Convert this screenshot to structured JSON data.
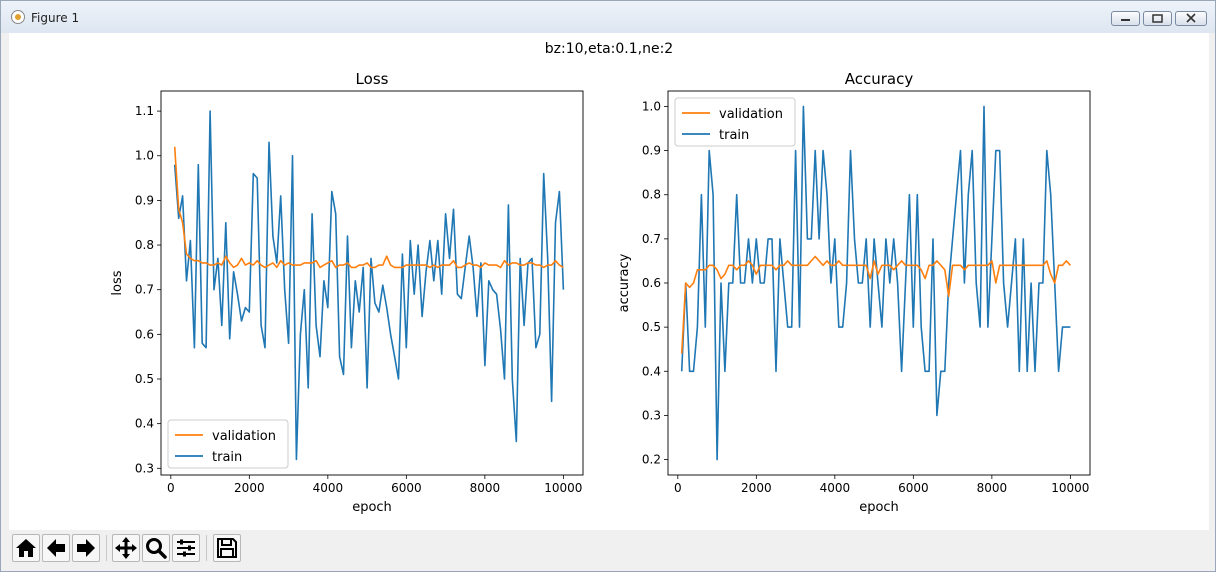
{
  "window": {
    "title": "Figure 1"
  },
  "figure": {
    "suptitle": "bz:10,eta:0.1,ne:2"
  },
  "toolbar": {
    "buttons": [
      "home-icon",
      "back-icon",
      "forward-icon",
      "pan-icon",
      "zoom-icon",
      "configure-icon",
      "save-icon"
    ]
  },
  "colors": {
    "validation": "#ff7f0e",
    "train": "#1f77b4"
  },
  "chart_data": [
    {
      "type": "line",
      "title": "Loss",
      "xlabel": "epoch",
      "ylabel": "loss",
      "xlim": [
        -250,
        10500
      ],
      "ylim": [
        0.285,
        1.145
      ],
      "xticks": [
        0,
        2000,
        4000,
        6000,
        8000,
        10000
      ],
      "yticks": [
        0.3,
        0.4,
        0.5,
        0.6,
        0.7,
        0.8,
        0.9,
        1.0,
        1.1
      ],
      "ytick_decimals": 1,
      "legend": "lower-left",
      "x": [
        100,
        200,
        300,
        400,
        500,
        600,
        700,
        800,
        900,
        1000,
        1100,
        1200,
        1300,
        1400,
        1500,
        1600,
        1700,
        1800,
        1900,
        2000,
        2100,
        2200,
        2300,
        2400,
        2500,
        2600,
        2700,
        2800,
        2900,
        3000,
        3100,
        3200,
        3300,
        3400,
        3500,
        3600,
        3700,
        3800,
        3900,
        4000,
        4100,
        4200,
        4300,
        4400,
        4500,
        4600,
        4700,
        4800,
        4900,
        5000,
        5100,
        5200,
        5300,
        5400,
        5500,
        5600,
        5700,
        5800,
        5900,
        6000,
        6100,
        6200,
        6300,
        6400,
        6500,
        6600,
        6700,
        6800,
        6900,
        7000,
        7100,
        7200,
        7300,
        7400,
        7500,
        7600,
        7700,
        7800,
        7900,
        8000,
        8100,
        8200,
        8300,
        8400,
        8500,
        8600,
        8700,
        8800,
        8900,
        9000,
        9100,
        9200,
        9300,
        9400,
        9500,
        9600,
        9700,
        9800,
        9900,
        10000
      ],
      "series": [
        {
          "name": "validation",
          "values": [
            1.02,
            0.88,
            0.85,
            0.78,
            0.77,
            0.765,
            0.765,
            0.76,
            0.76,
            0.755,
            0.755,
            0.76,
            0.755,
            0.775,
            0.76,
            0.75,
            0.755,
            0.77,
            0.755,
            0.76,
            0.755,
            0.765,
            0.755,
            0.75,
            0.755,
            0.76,
            0.75,
            0.765,
            0.755,
            0.76,
            0.755,
            0.755,
            0.755,
            0.76,
            0.76,
            0.76,
            0.765,
            0.75,
            0.755,
            0.76,
            0.765,
            0.75,
            0.755,
            0.755,
            0.76,
            0.75,
            0.75,
            0.755,
            0.755,
            0.76,
            0.75,
            0.75,
            0.755,
            0.755,
            0.775,
            0.755,
            0.75,
            0.75,
            0.75,
            0.755,
            0.755,
            0.755,
            0.755,
            0.755,
            0.755,
            0.75,
            0.755,
            0.75,
            0.755,
            0.755,
            0.755,
            0.765,
            0.75,
            0.75,
            0.755,
            0.76,
            0.755,
            0.755,
            0.75,
            0.76,
            0.755,
            0.755,
            0.755,
            0.75,
            0.765,
            0.755,
            0.76,
            0.76,
            0.755,
            0.755,
            0.76,
            0.76,
            0.755,
            0.755,
            0.75,
            0.755,
            0.755,
            0.765,
            0.755,
            0.75
          ]
        },
        {
          "name": "train",
          "values": [
            0.98,
            0.86,
            0.91,
            0.72,
            0.81,
            0.57,
            0.98,
            0.58,
            0.57,
            1.1,
            0.7,
            0.77,
            0.62,
            0.85,
            0.59,
            0.74,
            0.69,
            0.63,
            0.66,
            0.65,
            0.96,
            0.95,
            0.62,
            0.57,
            1.03,
            0.82,
            0.76,
            0.91,
            0.7,
            0.58,
            1.0,
            0.32,
            0.6,
            0.7,
            0.48,
            0.87,
            0.62,
            0.55,
            0.72,
            0.66,
            0.92,
            0.87,
            0.55,
            0.51,
            0.82,
            0.57,
            0.72,
            0.65,
            0.75,
            0.48,
            0.77,
            0.67,
            0.65,
            0.71,
            0.66,
            0.6,
            0.55,
            0.5,
            0.78,
            0.57,
            0.81,
            0.69,
            0.8,
            0.64,
            0.74,
            0.81,
            0.72,
            0.81,
            0.69,
            0.87,
            0.77,
            0.88,
            0.69,
            0.68,
            0.75,
            0.82,
            0.75,
            0.64,
            0.76,
            0.53,
            0.72,
            0.7,
            0.69,
            0.61,
            0.5,
            0.89,
            0.5,
            0.36,
            0.77,
            0.62,
            0.76,
            0.77,
            0.57,
            0.6,
            0.96,
            0.77,
            0.45,
            0.85,
            0.92,
            0.7
          ]
        }
      ]
    },
    {
      "type": "line",
      "title": "Accuracy",
      "xlabel": "epoch",
      "ylabel": "accuracy",
      "xlim": [
        -250,
        10500
      ],
      "ylim": [
        0.165,
        1.035
      ],
      "xticks": [
        0,
        2000,
        4000,
        6000,
        8000,
        10000
      ],
      "yticks": [
        0.2,
        0.3,
        0.4,
        0.5,
        0.6,
        0.7,
        0.8,
        0.9,
        1.0
      ],
      "ytick_decimals": 1,
      "legend": "upper-left",
      "x": [
        100,
        200,
        300,
        400,
        500,
        600,
        700,
        800,
        900,
        1000,
        1100,
        1200,
        1300,
        1400,
        1500,
        1600,
        1700,
        1800,
        1900,
        2000,
        2100,
        2200,
        2300,
        2400,
        2500,
        2600,
        2700,
        2800,
        2900,
        3000,
        3100,
        3200,
        3300,
        3400,
        3500,
        3600,
        3700,
        3800,
        3900,
        4000,
        4100,
        4200,
        4300,
        4400,
        4500,
        4600,
        4700,
        4800,
        4900,
        5000,
        5100,
        5200,
        5300,
        5400,
        5500,
        5600,
        5700,
        5800,
        5900,
        6000,
        6100,
        6200,
        6300,
        6400,
        6500,
        6600,
        6700,
        6800,
        6900,
        7000,
        7100,
        7200,
        7300,
        7400,
        7500,
        7600,
        7700,
        7800,
        7900,
        8000,
        8100,
        8200,
        8300,
        8400,
        8500,
        8600,
        8700,
        8800,
        8900,
        9000,
        9100,
        9200,
        9300,
        9400,
        9500,
        9600,
        9700,
        9800,
        9900,
        10000
      ],
      "series": [
        {
          "name": "validation",
          "values": [
            0.44,
            0.6,
            0.59,
            0.6,
            0.63,
            0.63,
            0.63,
            0.64,
            0.64,
            0.63,
            0.61,
            0.62,
            0.64,
            0.64,
            0.63,
            0.64,
            0.64,
            0.65,
            0.64,
            0.62,
            0.64,
            0.64,
            0.64,
            0.64,
            0.63,
            0.64,
            0.64,
            0.65,
            0.64,
            0.64,
            0.64,
            0.64,
            0.64,
            0.65,
            0.66,
            0.65,
            0.64,
            0.65,
            0.64,
            0.64,
            0.65,
            0.64,
            0.64,
            0.64,
            0.64,
            0.64,
            0.64,
            0.64,
            0.61,
            0.65,
            0.62,
            0.64,
            0.64,
            0.64,
            0.63,
            0.64,
            0.65,
            0.64,
            0.64,
            0.64,
            0.64,
            0.63,
            0.61,
            0.64,
            0.64,
            0.65,
            0.64,
            0.63,
            0.57,
            0.64,
            0.64,
            0.64,
            0.63,
            0.64,
            0.64,
            0.64,
            0.64,
            0.64,
            0.64,
            0.65,
            0.6,
            0.64,
            0.64,
            0.64,
            0.64,
            0.64,
            0.64,
            0.64,
            0.64,
            0.64,
            0.64,
            0.64,
            0.64,
            0.65,
            0.62,
            0.6,
            0.64,
            0.64,
            0.65,
            0.64
          ]
        },
        {
          "name": "train",
          "values": [
            0.4,
            0.6,
            0.4,
            0.4,
            0.5,
            0.8,
            0.5,
            0.9,
            0.8,
            0.2,
            0.6,
            0.4,
            0.6,
            0.6,
            0.8,
            0.6,
            0.6,
            0.7,
            0.6,
            0.7,
            0.6,
            0.6,
            0.7,
            0.7,
            0.4,
            0.7,
            0.6,
            0.5,
            0.5,
            0.9,
            0.5,
            1.0,
            0.7,
            0.7,
            0.9,
            0.7,
            0.9,
            0.8,
            0.6,
            0.7,
            0.5,
            0.5,
            0.6,
            0.9,
            0.7,
            0.6,
            0.6,
            0.7,
            0.5,
            0.7,
            0.6,
            0.5,
            0.7,
            0.6,
            0.7,
            0.6,
            0.4,
            0.6,
            0.8,
            0.5,
            0.8,
            0.5,
            0.4,
            0.4,
            0.7,
            0.3,
            0.4,
            0.4,
            0.6,
            0.7,
            0.8,
            0.9,
            0.6,
            0.8,
            0.9,
            0.6,
            0.5,
            1.0,
            0.5,
            0.7,
            0.9,
            0.9,
            0.6,
            0.5,
            0.6,
            0.7,
            0.4,
            0.7,
            0.4,
            0.6,
            0.4,
            0.6,
            0.6,
            0.9,
            0.8,
            0.6,
            0.4,
            0.5,
            0.5,
            0.5
          ]
        }
      ]
    }
  ]
}
